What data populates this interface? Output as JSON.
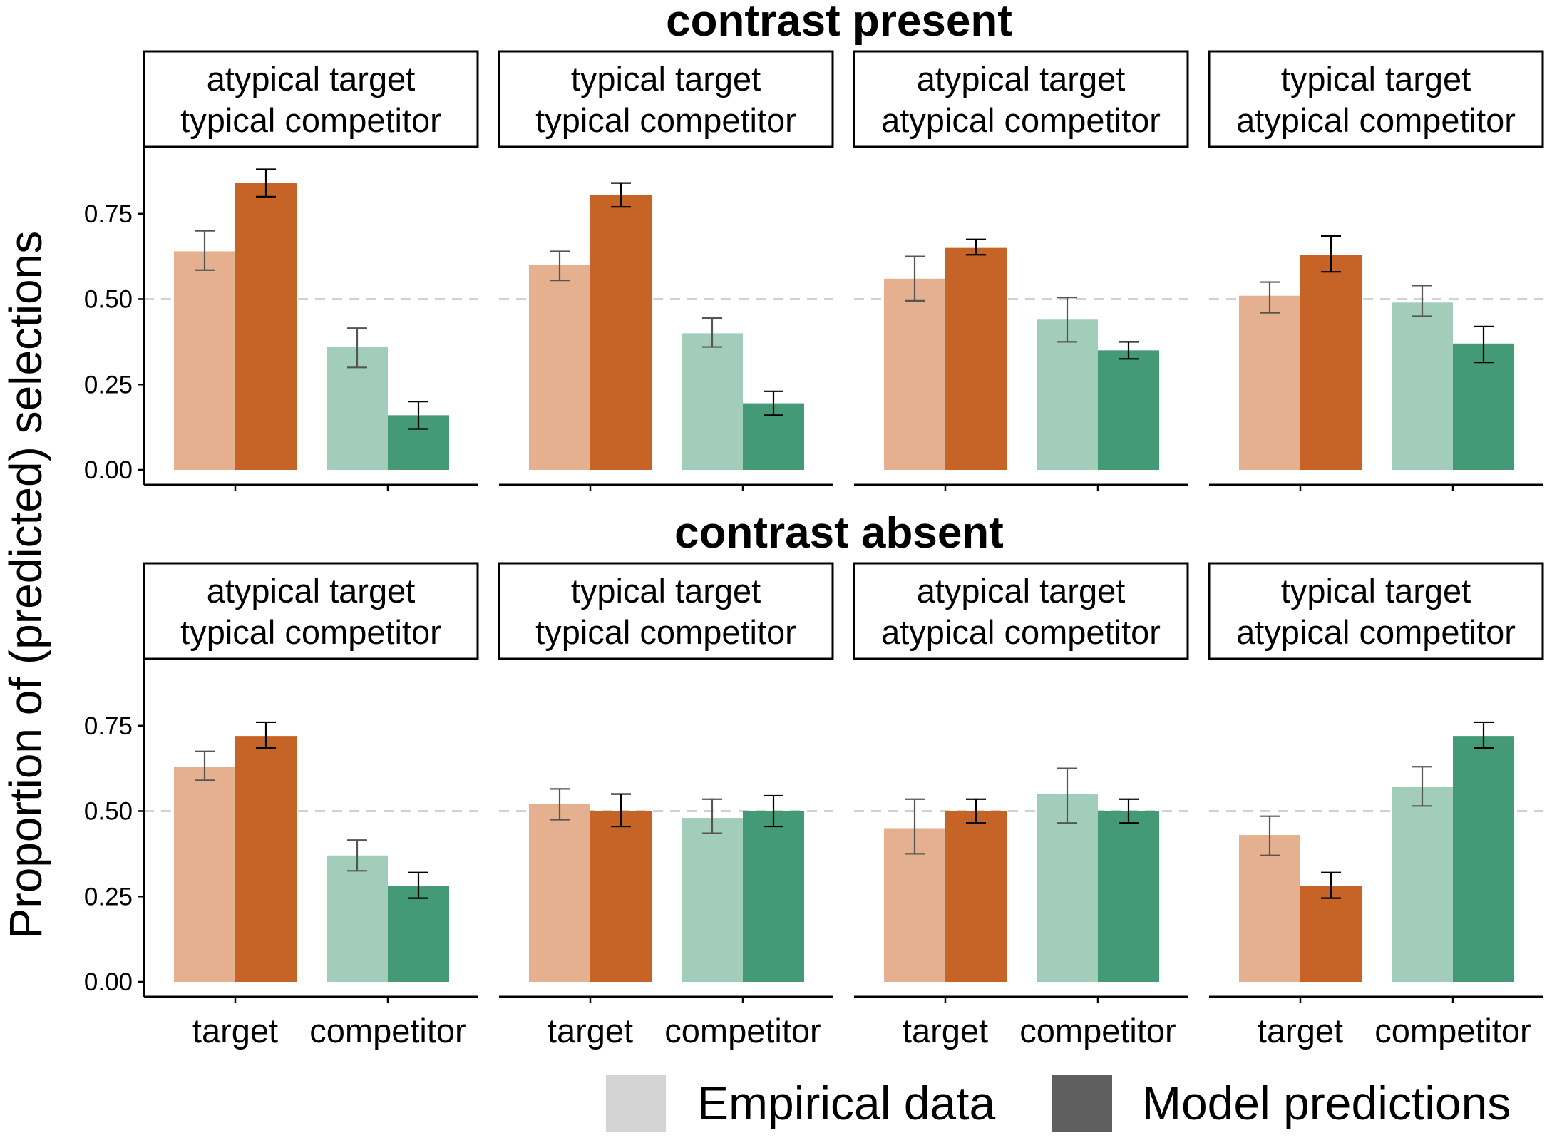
{
  "chart_data": {
    "type": "bar",
    "ylabel": "Proportion of (predicted) selections",
    "ylim": [
      0,
      0.94
    ],
    "yticks": [
      "0.00",
      "0.25",
      "0.50",
      "0.75"
    ],
    "reference_line": 0.5,
    "categories": [
      "target",
      "competitor"
    ],
    "colors": {
      "target_empirical": "#e5b08f",
      "target_model": "#c66427",
      "competitor_empirical": "#a2cdbb",
      "competitor_model": "#449a77",
      "empirical_legend": "#d4d4d4",
      "model_legend": "#5f5f5f",
      "ref_line": "#d2d2d2"
    },
    "legend": {
      "position": "bottom-right",
      "items": [
        {
          "label": "Empirical data"
        },
        {
          "label": "Model predictions"
        }
      ]
    },
    "sections": [
      {
        "title": "contrast present",
        "panels": [
          {
            "strip": [
              "atypical target",
              "typical competitor"
            ],
            "values": {
              "target": {
                "empirical": [
                  0.64,
                  0.585,
                  0.7
                ],
                "model": [
                  0.84,
                  0.8,
                  0.88
                ]
              },
              "competitor": {
                "empirical": [
                  0.36,
                  0.3,
                  0.415
                ],
                "model": [
                  0.16,
                  0.12,
                  0.2
                ]
              }
            }
          },
          {
            "strip": [
              "typical target",
              "typical competitor"
            ],
            "values": {
              "target": {
                "empirical": [
                  0.6,
                  0.555,
                  0.64
                ],
                "model": [
                  0.805,
                  0.77,
                  0.84
                ]
              },
              "competitor": {
                "empirical": [
                  0.4,
                  0.36,
                  0.445
                ],
                "model": [
                  0.195,
                  0.16,
                  0.23
                ]
              }
            }
          },
          {
            "strip": [
              "atypical target",
              "atypical competitor"
            ],
            "values": {
              "target": {
                "empirical": [
                  0.56,
                  0.495,
                  0.625
                ],
                "model": [
                  0.65,
                  0.63,
                  0.675
                ]
              },
              "competitor": {
                "empirical": [
                  0.44,
                  0.375,
                  0.505
                ],
                "model": [
                  0.35,
                  0.325,
                  0.375
                ]
              }
            }
          },
          {
            "strip": [
              "typical target",
              "atypical competitor"
            ],
            "values": {
              "target": {
                "empirical": [
                  0.51,
                  0.46,
                  0.55
                ],
                "model": [
                  0.63,
                  0.58,
                  0.685
                ]
              },
              "competitor": {
                "empirical": [
                  0.49,
                  0.45,
                  0.54
                ],
                "model": [
                  0.37,
                  0.315,
                  0.42
                ]
              }
            }
          }
        ]
      },
      {
        "title": "contrast absent",
        "panels": [
          {
            "strip": [
              "atypical target",
              "typical competitor"
            ],
            "values": {
              "target": {
                "empirical": [
                  0.63,
                  0.59,
                  0.675
                ],
                "model": [
                  0.72,
                  0.685,
                  0.76
                ]
              },
              "competitor": {
                "empirical": [
                  0.37,
                  0.325,
                  0.415
                ],
                "model": [
                  0.28,
                  0.245,
                  0.32
                ]
              }
            }
          },
          {
            "strip": [
              "typical target",
              "typical competitor"
            ],
            "values": {
              "target": {
                "empirical": [
                  0.52,
                  0.475,
                  0.565
                ],
                "model": [
                  0.5,
                  0.455,
                  0.55
                ]
              },
              "competitor": {
                "empirical": [
                  0.48,
                  0.435,
                  0.535
                ],
                "model": [
                  0.5,
                  0.455,
                  0.545
                ]
              }
            }
          },
          {
            "strip": [
              "atypical target",
              "atypical competitor"
            ],
            "values": {
              "target": {
                "empirical": [
                  0.45,
                  0.375,
                  0.535
                ],
                "model": [
                  0.5,
                  0.465,
                  0.535
                ]
              },
              "competitor": {
                "empirical": [
                  0.55,
                  0.465,
                  0.625
                ],
                "model": [
                  0.5,
                  0.465,
                  0.535
                ]
              }
            }
          },
          {
            "strip": [
              "typical target",
              "atypical competitor"
            ],
            "values": {
              "target": {
                "empirical": [
                  0.43,
                  0.37,
                  0.485
                ],
                "model": [
                  0.28,
                  0.245,
                  0.32
                ]
              },
              "competitor": {
                "empirical": [
                  0.57,
                  0.515,
                  0.63
                ],
                "model": [
                  0.72,
                  0.685,
                  0.76
                ]
              }
            }
          }
        ]
      }
    ]
  }
}
